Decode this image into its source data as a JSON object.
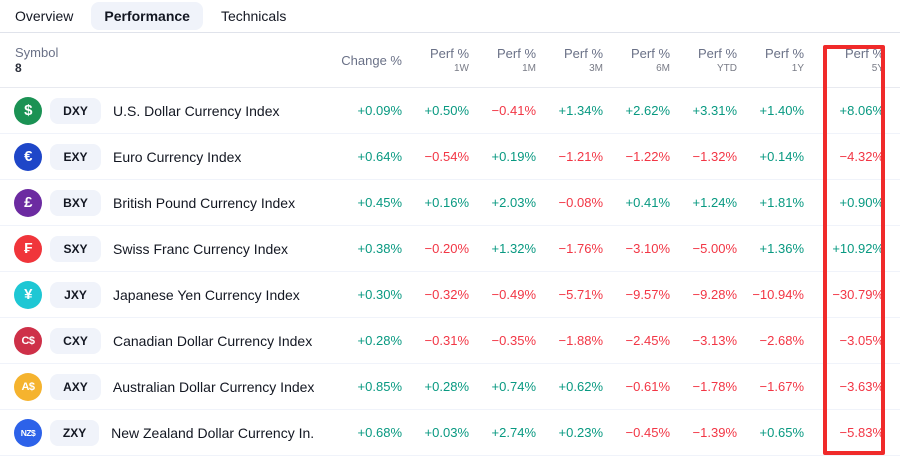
{
  "tabs": {
    "overview": "Overview",
    "performance": "Performance",
    "technicals": "Technicals"
  },
  "table": {
    "header": {
      "symbol_label": "Symbol",
      "symbol_count": "8",
      "change_label": "Change %",
      "perf_label": "Perf %",
      "periods": [
        "1W",
        "1M",
        "3M",
        "6M",
        "YTD",
        "1Y",
        "5Y"
      ]
    },
    "rows": [
      {
        "icon": {
          "name": "us-dollar-icon",
          "glyph": "$",
          "color": "#1B9254"
        },
        "ticker": "DXY",
        "name": "U.S. Dollar Currency Index",
        "values": [
          "+0.09%",
          "+0.50%",
          "−0.41%",
          "+1.34%",
          "+2.62%",
          "+3.31%",
          "+1.40%",
          "+8.06%"
        ]
      },
      {
        "icon": {
          "name": "euro-icon",
          "glyph": "€",
          "color": "#1E46C8"
        },
        "ticker": "EXY",
        "name": "Euro Currency Index",
        "values": [
          "+0.64%",
          "−0.54%",
          "+0.19%",
          "−1.21%",
          "−1.22%",
          "−1.32%",
          "+0.14%",
          "−4.32%"
        ]
      },
      {
        "icon": {
          "name": "british-pound-icon",
          "glyph": "£",
          "color": "#6C2BA1"
        },
        "ticker": "BXY",
        "name": "British Pound Currency Index",
        "values": [
          "+0.45%",
          "+0.16%",
          "+2.03%",
          "−0.08%",
          "+0.41%",
          "+1.24%",
          "+1.81%",
          "+0.90%"
        ]
      },
      {
        "icon": {
          "name": "swiss-franc-icon",
          "glyph": "₣",
          "color": "#F0353B"
        },
        "ticker": "SXY",
        "name": "Swiss Franc Currency Index",
        "values": [
          "+0.38%",
          "−0.20%",
          "+1.32%",
          "−1.76%",
          "−3.10%",
          "−5.00%",
          "+1.36%",
          "+10.92%"
        ]
      },
      {
        "icon": {
          "name": "japanese-yen-icon",
          "glyph": "¥",
          "color": "#1EC7D4"
        },
        "ticker": "JXY",
        "name": "Japanese Yen Currency Index",
        "values": [
          "+0.30%",
          "−0.32%",
          "−0.49%",
          "−5.71%",
          "−9.57%",
          "−9.28%",
          "−10.94%",
          "−30.79%"
        ]
      },
      {
        "icon": {
          "name": "canadian-dollar-icon",
          "glyph": "C$",
          "color": "#CE3048"
        },
        "ticker": "CXY",
        "name": "Canadian Dollar Currency Index",
        "values": [
          "+0.28%",
          "−0.31%",
          "−0.35%",
          "−1.88%",
          "−2.45%",
          "−3.13%",
          "−2.68%",
          "−3.05%"
        ]
      },
      {
        "icon": {
          "name": "australian-dollar-icon",
          "glyph": "A$",
          "color": "#F5B32E"
        },
        "ticker": "AXY",
        "name": "Australian Dollar Currency Index",
        "values": [
          "+0.85%",
          "+0.28%",
          "+0.74%",
          "+0.62%",
          "−0.61%",
          "−1.78%",
          "−1.67%",
          "−3.63%"
        ]
      },
      {
        "icon": {
          "name": "new-zealand-dollar-icon",
          "glyph": "NZ$",
          "color": "#2D62E9"
        },
        "ticker": "ZXY",
        "name": "New Zealand Dollar Currency In...",
        "values": [
          "+0.68%",
          "+0.03%",
          "+2.74%",
          "+0.23%",
          "−0.45%",
          "−1.39%",
          "+0.65%",
          "−5.83%"
        ]
      }
    ]
  },
  "colors": {
    "positive": "#089981",
    "negative": "#F23645",
    "highlight": "#F02A2A"
  }
}
